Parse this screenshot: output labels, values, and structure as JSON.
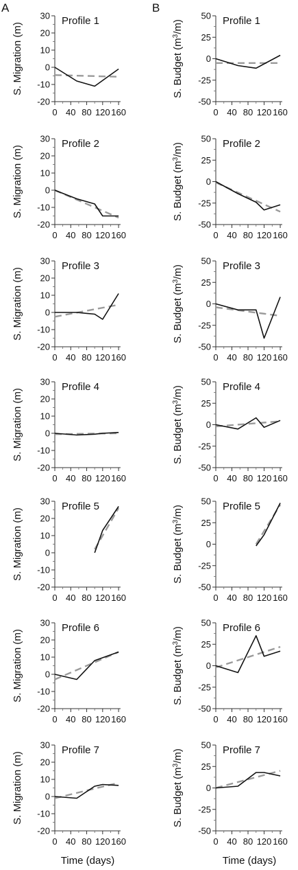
{
  "panel_letters": [
    "A",
    "B"
  ],
  "xlabel": "Time (days)",
  "chart_data": [
    {
      "type": "line",
      "column": "A",
      "title": "Profile 1",
      "ylabel": "S. Migration (m)",
      "xticks": [
        0,
        40,
        80,
        120,
        160
      ],
      "yticks": [
        30,
        20,
        10,
        0,
        -10,
        -20
      ],
      "xlim": [
        0,
        165
      ],
      "ylim": [
        -20,
        30
      ],
      "series": [
        {
          "x": [
            0,
            55,
            100,
            160
          ],
          "y": [
            0,
            -8,
            -11,
            -1
          ]
        },
        {
          "x": [
            0,
            160
          ],
          "y": [
            -4.5,
            -5.5
          ]
        }
      ]
    },
    {
      "type": "line",
      "column": "B",
      "title": "Profile 1",
      "ylabel": "S. Budget (m³/m)",
      "xticks": [
        0,
        40,
        80,
        120,
        160
      ],
      "yticks": [
        50,
        25,
        0,
        -25,
        -50
      ],
      "xlim": [
        0,
        165
      ],
      "ylim": [
        -50,
        50
      ],
      "series": [
        {
          "x": [
            0,
            55,
            100,
            160
          ],
          "y": [
            0,
            -8,
            -11,
            4
          ]
        },
        {
          "x": [
            0,
            160
          ],
          "y": [
            -5,
            -5
          ]
        }
      ]
    },
    {
      "type": "line",
      "column": "A",
      "title": "Profile 2",
      "ylabel": "S. Migration (m)",
      "xticks": [
        0,
        40,
        80,
        120,
        160
      ],
      "yticks": [
        30,
        20,
        10,
        0,
        -10,
        -20
      ],
      "xlim": [
        0,
        165
      ],
      "ylim": [
        -20,
        30
      ],
      "series": [
        {
          "x": [
            0,
            55,
            100,
            120,
            160
          ],
          "y": [
            0,
            -5,
            -8,
            -15,
            -15
          ]
        },
        {
          "x": [
            0,
            160
          ],
          "y": [
            0,
            -16
          ]
        }
      ]
    },
    {
      "type": "line",
      "column": "B",
      "title": "Profile 2",
      "ylabel": "S. Budget (m³/m)",
      "xticks": [
        0,
        40,
        80,
        120,
        160
      ],
      "yticks": [
        50,
        25,
        0,
        -25,
        -50
      ],
      "xlim": [
        0,
        165
      ],
      "ylim": [
        -50,
        50
      ],
      "series": [
        {
          "x": [
            0,
            55,
            100,
            120,
            160
          ],
          "y": [
            0,
            -14,
            -24,
            -33,
            -27
          ]
        },
        {
          "x": [
            0,
            160
          ],
          "y": [
            -1,
            -35
          ]
        }
      ]
    },
    {
      "type": "line",
      "column": "A",
      "title": "Profile 3",
      "ylabel": "S. Migration (m)",
      "xticks": [
        0,
        40,
        80,
        120,
        160
      ],
      "yticks": [
        30,
        20,
        10,
        0,
        -10,
        -20
      ],
      "xlim": [
        0,
        165
      ],
      "ylim": [
        -20,
        30
      ],
      "series": [
        {
          "x": [
            0,
            55,
            100,
            120,
            160
          ],
          "y": [
            0,
            0,
            -1,
            -4,
            11
          ]
        },
        {
          "x": [
            0,
            160
          ],
          "y": [
            -2.5,
            4.5
          ]
        }
      ]
    },
    {
      "type": "line",
      "column": "B",
      "title": "Profile 3",
      "ylabel": "S. Budget (m³/m)",
      "xticks": [
        0,
        40,
        80,
        120,
        160
      ],
      "yticks": [
        50,
        25,
        0,
        -25,
        -50
      ],
      "xlim": [
        0,
        165
      ],
      "ylim": [
        -50,
        50
      ],
      "series": [
        {
          "x": [
            0,
            55,
            100,
            120,
            160
          ],
          "y": [
            0,
            -7,
            -7,
            -40,
            8
          ]
        },
        {
          "x": [
            0,
            160
          ],
          "y": [
            -4,
            -14
          ]
        }
      ]
    },
    {
      "type": "line",
      "column": "A",
      "title": "Profile 4",
      "ylabel": "S. Migration (m)",
      "xticks": [
        0,
        40,
        80,
        120,
        160
      ],
      "yticks": [
        30,
        20,
        10,
        0,
        -10,
        -20
      ],
      "xlim": [
        0,
        165
      ],
      "ylim": [
        -20,
        30
      ],
      "series": [
        {
          "x": [
            0,
            55,
            100,
            120,
            160
          ],
          "y": [
            0,
            -1,
            -0.5,
            0,
            0.5
          ]
        },
        {
          "x": [
            0,
            160
          ],
          "y": [
            -0.5,
            0
          ]
        }
      ]
    },
    {
      "type": "line",
      "column": "B",
      "title": "Profile 4",
      "ylabel": "S. Budget (m³/m)",
      "xticks": [
        0,
        40,
        80,
        120,
        160
      ],
      "yticks": [
        50,
        25,
        0,
        -25,
        -50
      ],
      "xlim": [
        0,
        165
      ],
      "ylim": [
        -50,
        50
      ],
      "series": [
        {
          "x": [
            0,
            55,
            100,
            120,
            160
          ],
          "y": [
            0,
            -5,
            8,
            -3,
            5
          ]
        },
        {
          "x": [
            0,
            160
          ],
          "y": [
            -2,
            4
          ]
        }
      ]
    },
    {
      "type": "line",
      "column": "A",
      "title": "Profile 5",
      "ylabel": "S. Migration (m)",
      "xticks": [
        0,
        40,
        80,
        120,
        160
      ],
      "yticks": [
        30,
        20,
        10,
        0,
        -10,
        -20
      ],
      "xlim": [
        0,
        165
      ],
      "ylim": [
        -20,
        30
      ],
      "series": [
        {
          "x": [
            100,
            120,
            160
          ],
          "y": [
            0,
            13,
            27
          ]
        },
        {
          "x": [
            100,
            160
          ],
          "y": [
            2,
            26
          ]
        }
      ]
    },
    {
      "type": "line",
      "column": "B",
      "title": "Profile 5",
      "ylabel": "S. Budget (m³/m)",
      "xticks": [
        0,
        40,
        80,
        120,
        160
      ],
      "yticks": [
        50,
        25,
        0,
        -25,
        -50
      ],
      "xlim": [
        0,
        165
      ],
      "ylim": [
        -50,
        50
      ],
      "series": [
        {
          "x": [
            100,
            120,
            160
          ],
          "y": [
            -2,
            11,
            48
          ]
        },
        {
          "x": [
            100,
            160
          ],
          "y": [
            0,
            46
          ]
        }
      ]
    },
    {
      "type": "line",
      "column": "A",
      "title": "Profile 6",
      "ylabel": "S. Migration (m)",
      "xticks": [
        0,
        40,
        80,
        120,
        160
      ],
      "yticks": [
        30,
        20,
        10,
        0,
        -10,
        -20
      ],
      "xlim": [
        0,
        165
      ],
      "ylim": [
        -20,
        30
      ],
      "series": [
        {
          "x": [
            0,
            55,
            100,
            160
          ],
          "y": [
            0,
            -3,
            8,
            13
          ]
        },
        {
          "x": [
            0,
            160
          ],
          "y": [
            -3,
            13
          ]
        }
      ]
    },
    {
      "type": "line",
      "column": "B",
      "title": "Profile 6",
      "ylabel": "S. Budget (m³/m)",
      "xticks": [
        0,
        40,
        80,
        120,
        160
      ],
      "yticks": [
        50,
        25,
        0,
        -25,
        -50
      ],
      "xlim": [
        0,
        165
      ],
      "ylim": [
        -50,
        50
      ],
      "series": [
        {
          "x": [
            0,
            55,
            100,
            120,
            160
          ],
          "y": [
            0,
            -8,
            35,
            11,
            17
          ]
        },
        {
          "x": [
            0,
            160
          ],
          "y": [
            -2,
            22
          ]
        }
      ]
    },
    {
      "type": "line",
      "column": "A",
      "title": "Profile 7",
      "ylabel": "S. Migration (m)",
      "xticks": [
        0,
        40,
        80,
        120,
        160
      ],
      "yticks": [
        30,
        20,
        10,
        0,
        -10,
        -20
      ],
      "xlim": [
        0,
        165
      ],
      "ylim": [
        -20,
        30
      ],
      "series": [
        {
          "x": [
            0,
            55,
            100,
            120,
            160
          ],
          "y": [
            0,
            -1,
            6,
            7,
            6.5
          ]
        },
        {
          "x": [
            0,
            160
          ],
          "y": [
            -1,
            8
          ]
        }
      ]
    },
    {
      "type": "line",
      "column": "B",
      "title": "Profile 7",
      "ylabel": "S. Budget (m³/m)",
      "xticks": [
        0,
        40,
        80,
        120,
        160
      ],
      "yticks": [
        50,
        25,
        0,
        -25,
        -50
      ],
      "xlim": [
        0,
        165
      ],
      "ylim": [
        -50,
        50
      ],
      "series": [
        {
          "x": [
            0,
            55,
            100,
            120,
            160
          ],
          "y": [
            0,
            2,
            18,
            18,
            14
          ]
        },
        {
          "x": [
            0,
            160
          ],
          "y": [
            0,
            20
          ]
        }
      ]
    }
  ]
}
